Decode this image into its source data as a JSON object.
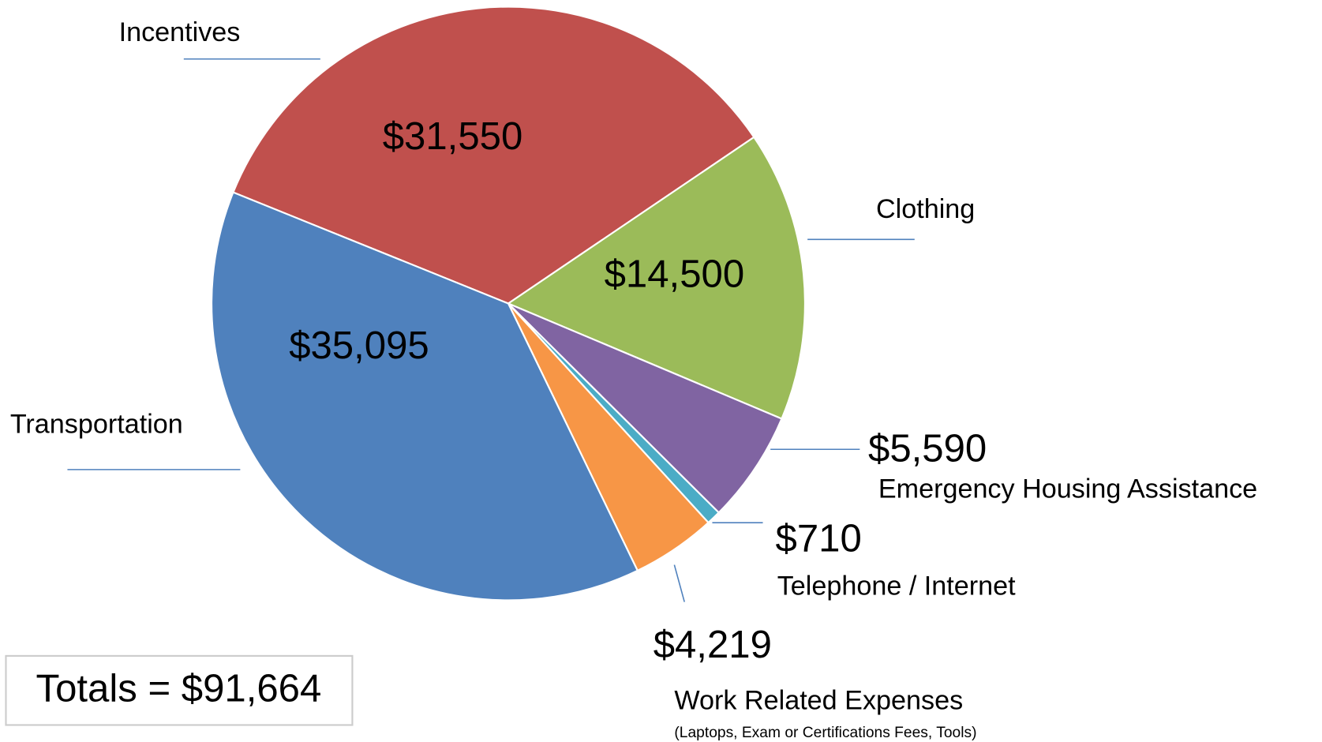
{
  "chart_data": {
    "type": "pie",
    "categories": [
      "Incentives",
      "Clothing",
      "Emergency Housing Assistance",
      "Telephone / Internet",
      "Work Related Expenses",
      "Transportation"
    ],
    "values": [
      31550,
      14500,
      5590,
      710,
      4219,
      35095
    ],
    "value_labels": [
      "$31,550",
      "$14,500",
      "$5,590",
      "$710",
      "$4,219",
      "$35,095"
    ],
    "colors": [
      "#c0504d",
      "#9bbb59",
      "#8064a2",
      "#4bacc6",
      "#f79646",
      "#4f81bd"
    ],
    "annotations": [
      "(Laptops, Exam or Certifications Fees, Tools)",
      "Totals = $91,664"
    ]
  }
}
